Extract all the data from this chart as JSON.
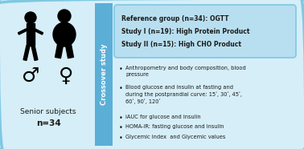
{
  "bg_color": "#ffffff",
  "outer_border_color": "#7ec8e3",
  "left_panel_bg": "#d6eef8",
  "middle_band_bg": "#5bafd6",
  "right_panel_bg": "#d6eef8",
  "ref_box_bg": "#b8dff0",
  "ref_box_border": "#7ec8e3",
  "ref_text_lines": [
    "Reference group (n=34): OGTT",
    "Study I (n=19): High Protein Product",
    "Study II (n=15): High CHO Product"
  ],
  "bullet_points": [
    "Anthropometry and body composition, blood\npressure",
    "Blood glucose and insulin at fasting and\nduring the postprandial curve: 15ʹ, 30ʹ, 45ʹ,\n60ʹ, 90ʹ, 120ʹ",
    "iAUC for glucose and insulin",
    "HOMA-IR: fasting glucose and insulin",
    "Glycemic index  and Glycemic values"
  ],
  "crossover_text": "Crossover study",
  "senior_label": "Senior subjects",
  "n_label": "n=34",
  "text_color_dark": "#1a1a1a",
  "text_color_white": "#ffffff"
}
